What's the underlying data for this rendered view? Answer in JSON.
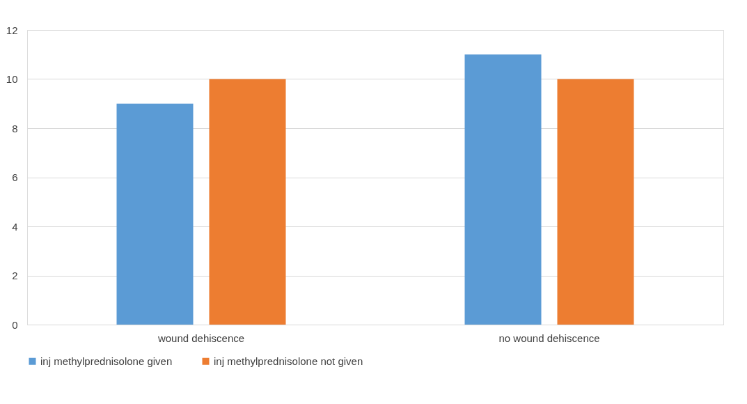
{
  "chart_data": {
    "type": "bar",
    "categories": [
      "wound dehiscence",
      "no wound dehiscence"
    ],
    "series": [
      {
        "name": "inj methylprednisolone given",
        "color": "#5b9bd5",
        "values": [
          9,
          11
        ]
      },
      {
        "name": "inj methylprednisolone not given",
        "color": "#ed7d31",
        "values": [
          10,
          10
        ]
      }
    ],
    "ylim": [
      0,
      12
    ],
    "yticks": [
      0,
      2,
      4,
      6,
      8,
      10,
      12
    ],
    "grid": "y",
    "legend": "bottom"
  }
}
